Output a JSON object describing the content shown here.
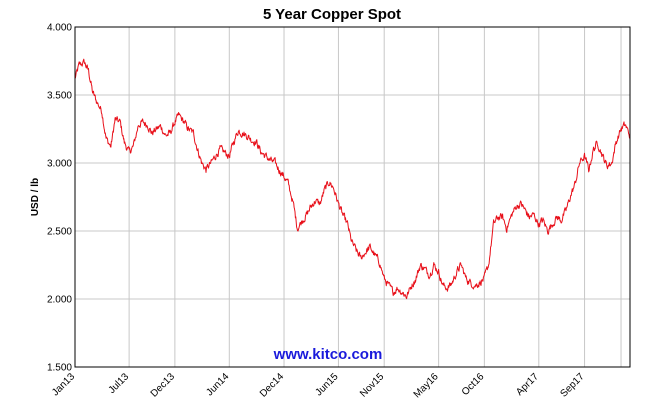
{
  "chart_data": {
    "type": "line",
    "title": "5 Year Copper Spot",
    "xlabel": "",
    "ylabel": "USD / lb",
    "watermark": "www.kitco.com",
    "ylim": [
      1.5,
      4.0
    ],
    "yticks": [
      1.5,
      2.0,
      2.5,
      3.0,
      3.5,
      4.0
    ],
    "ytick_labels": [
      "1.500",
      "2.000",
      "2.500",
      "3.000",
      "3.500",
      "4.000"
    ],
    "xlim": [
      "2013-01-01",
      "2018-01-31"
    ],
    "xtick_labels": [
      "Jan13",
      "Jul13",
      "Dec13",
      "Jun14",
      "Dec14",
      "Jun15",
      "Nov15",
      "May16",
      "Oct16",
      "Apr17",
      "Sep17"
    ],
    "xtick_dates": [
      "2013-01-01",
      "2013-07-01",
      "2013-12-01",
      "2014-06-01",
      "2014-12-01",
      "2015-06-01",
      "2015-11-01",
      "2016-05-01",
      "2016-10-01",
      "2017-04-01",
      "2017-09-01"
    ],
    "extra_gridlines": [
      "2018-01-01"
    ],
    "grid": true,
    "line_color": "#e8101a",
    "series": [
      {
        "name": "",
        "x": [
          "2013-01-01",
          "2013-01-15",
          "2013-02-01",
          "2013-02-15",
          "2013-03-01",
          "2013-03-15",
          "2013-04-01",
          "2013-04-15",
          "2013-05-01",
          "2013-05-15",
          "2013-06-01",
          "2013-06-15",
          "2013-07-01",
          "2013-07-15",
          "2013-08-01",
          "2013-08-15",
          "2013-09-01",
          "2013-09-15",
          "2013-10-01",
          "2013-10-15",
          "2013-11-01",
          "2013-11-15",
          "2013-12-01",
          "2013-12-15",
          "2014-01-01",
          "2014-01-15",
          "2014-02-01",
          "2014-02-15",
          "2014-03-01",
          "2014-03-15",
          "2014-04-01",
          "2014-04-15",
          "2014-05-01",
          "2014-05-15",
          "2014-06-01",
          "2014-06-15",
          "2014-07-01",
          "2014-07-15",
          "2014-08-01",
          "2014-08-15",
          "2014-09-01",
          "2014-09-15",
          "2014-10-01",
          "2014-10-15",
          "2014-11-01",
          "2014-11-15",
          "2014-12-01",
          "2014-12-15",
          "2015-01-01",
          "2015-01-15",
          "2015-02-01",
          "2015-02-15",
          "2015-03-01",
          "2015-03-15",
          "2015-04-01",
          "2015-04-15",
          "2015-05-01",
          "2015-05-15",
          "2015-06-01",
          "2015-06-15",
          "2015-07-01",
          "2015-07-15",
          "2015-08-01",
          "2015-08-15",
          "2015-09-01",
          "2015-09-15",
          "2015-10-01",
          "2015-10-15",
          "2015-11-01",
          "2015-11-15",
          "2015-12-01",
          "2015-12-15",
          "2016-01-01",
          "2016-01-15",
          "2016-02-01",
          "2016-02-15",
          "2016-03-01",
          "2016-03-15",
          "2016-04-01",
          "2016-04-15",
          "2016-05-01",
          "2016-05-15",
          "2016-06-01",
          "2016-06-15",
          "2016-07-01",
          "2016-07-15",
          "2016-08-01",
          "2016-08-15",
          "2016-09-01",
          "2016-09-15",
          "2016-10-01",
          "2016-10-15",
          "2016-11-01",
          "2016-11-15",
          "2016-12-01",
          "2016-12-15",
          "2017-01-01",
          "2017-01-15",
          "2017-02-01",
          "2017-02-15",
          "2017-03-01",
          "2017-03-15",
          "2017-04-01",
          "2017-04-15",
          "2017-05-01",
          "2017-05-15",
          "2017-06-01",
          "2017-06-15",
          "2017-07-01",
          "2017-07-15",
          "2017-08-01",
          "2017-08-15",
          "2017-09-01",
          "2017-09-15",
          "2017-10-01",
          "2017-10-15",
          "2017-11-01",
          "2017-11-15",
          "2017-12-01",
          "2017-12-15",
          "2018-01-01",
          "2018-01-15",
          "2018-01-31"
        ],
        "y": [
          3.62,
          3.72,
          3.74,
          3.68,
          3.52,
          3.45,
          3.38,
          3.18,
          3.12,
          3.32,
          3.3,
          3.15,
          3.08,
          3.12,
          3.28,
          3.3,
          3.28,
          3.22,
          3.25,
          3.27,
          3.2,
          3.22,
          3.3,
          3.35,
          3.3,
          3.25,
          3.22,
          3.1,
          3.0,
          2.95,
          3.0,
          3.05,
          3.1,
          3.08,
          3.05,
          3.15,
          3.24,
          3.22,
          3.2,
          3.17,
          3.15,
          3.08,
          3.05,
          3.02,
          3.0,
          2.95,
          2.9,
          2.85,
          2.7,
          2.52,
          2.58,
          2.62,
          2.68,
          2.72,
          2.7,
          2.8,
          2.86,
          2.82,
          2.7,
          2.62,
          2.55,
          2.42,
          2.35,
          2.3,
          2.35,
          2.38,
          2.32,
          2.28,
          2.15,
          2.1,
          2.05,
          2.08,
          2.05,
          2.02,
          2.1,
          2.15,
          2.25,
          2.22,
          2.18,
          2.25,
          2.2,
          2.1,
          2.08,
          2.12,
          2.2,
          2.25,
          2.15,
          2.12,
          2.1,
          2.12,
          2.15,
          2.25,
          2.55,
          2.6,
          2.6,
          2.52,
          2.62,
          2.68,
          2.7,
          2.65,
          2.6,
          2.62,
          2.55,
          2.58,
          2.5,
          2.55,
          2.6,
          2.58,
          2.65,
          2.75,
          2.85,
          3.0,
          3.05,
          2.95,
          3.1,
          3.15,
          3.05,
          2.98,
          3.0,
          3.15,
          3.25,
          3.28,
          3.2
        ]
      }
    ]
  }
}
